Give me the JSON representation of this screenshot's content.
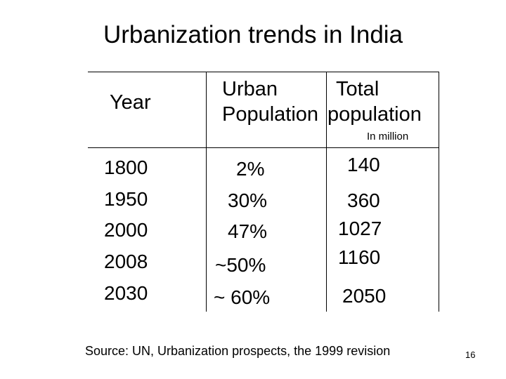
{
  "slide": {
    "title": "Urbanization trends in India",
    "source": "Source: UN, Urbanization prospects, the 1999 revision",
    "page_number": "16"
  },
  "table": {
    "headers": {
      "year": "Year",
      "urban_line1": "Urban",
      "urban_line2": "Population",
      "total_line1": "Total",
      "total_line2": "population"
    },
    "unit_note": "In million",
    "rows": [
      {
        "year": "1800",
        "urban": "2%",
        "total": "140"
      },
      {
        "year": "1950",
        "urban": "30%",
        "total": "360"
      },
      {
        "year": "2000",
        "urban": "47%",
        "total": "1027"
      },
      {
        "year": "2008",
        "urban": "~50%",
        "total": "1160"
      },
      {
        "year": "2030",
        "urban": "~ 60%",
        "total": "2050"
      }
    ]
  }
}
